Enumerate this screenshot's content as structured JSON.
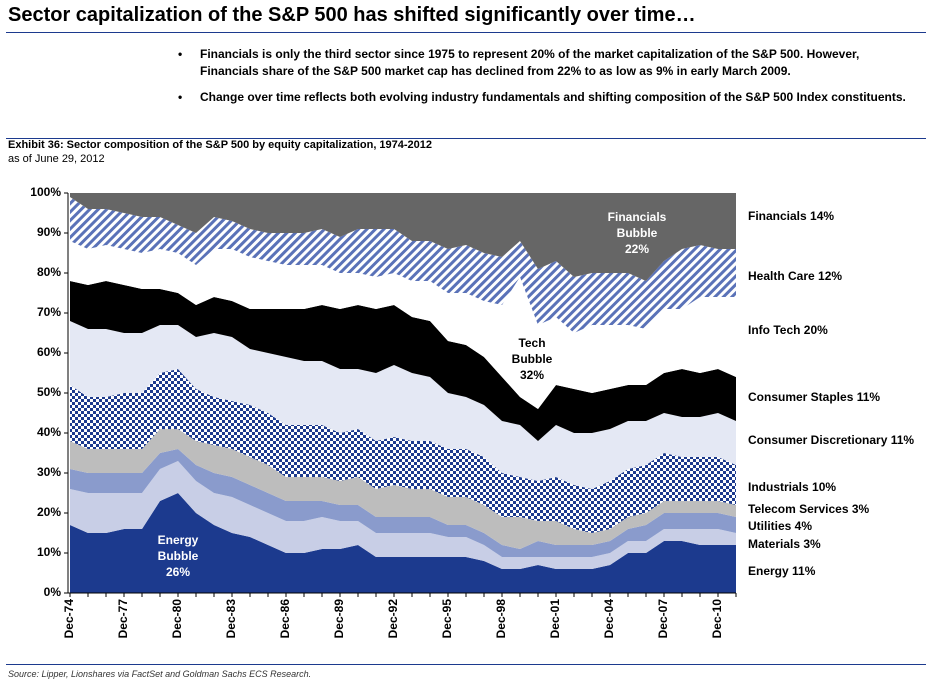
{
  "header": {
    "title": "Sector capitalization of the S&P 500 has shifted significantly over time…"
  },
  "bullets": [
    "Financials is only the third sector since 1975 to represent 20% of the market capitalization of the S&P 500. However, Financials share of the S&P 500 market cap has declined from 22% to as low as 9% in early March 2009.",
    "Change over time reflects both evolving industry fundamentals and shifting composition of the S&P 500 Index constituents."
  ],
  "chart_data": {
    "type": "stacked-area",
    "title": "Exhibit 36: Sector composition of the S&P 500 by equity capitalization, 1974-2012",
    "subtitle": "as of June 29, 2012",
    "categories": [
      "Dec-74",
      null,
      null,
      "Dec-77",
      null,
      null,
      "Dec-80",
      null,
      null,
      "Dec-83",
      null,
      null,
      "Dec-86",
      null,
      null,
      "Dec-89",
      null,
      null,
      "Dec-92",
      null,
      null,
      "Dec-95",
      null,
      null,
      "Dec-98",
      null,
      null,
      "Dec-01",
      null,
      null,
      "Dec-04",
      null,
      null,
      "Dec-07",
      null,
      null,
      "Dec-10",
      null
    ],
    "series": [
      {
        "name": "Energy 11%",
        "color": "#1c3a8e",
        "values": [
          17,
          15,
          15,
          16,
          16,
          23,
          25,
          20,
          17,
          15,
          14,
          12,
          10,
          10,
          11,
          11,
          12,
          9,
          9,
          9,
          9,
          9,
          9,
          8,
          6,
          6,
          7,
          6,
          6,
          6,
          7,
          10,
          10,
          13,
          13,
          12,
          12,
          12
        ]
      },
      {
        "name": "Materials 3%",
        "color": "#c8cee6",
        "values": [
          9,
          10,
          10,
          9,
          9,
          8,
          8,
          8,
          8,
          9,
          8,
          8,
          8,
          8,
          8,
          7,
          6,
          6,
          6,
          6,
          6,
          5,
          5,
          4,
          3,
          3,
          2,
          3,
          3,
          3,
          3,
          3,
          3,
          3,
          3,
          4,
          4,
          3
        ]
      },
      {
        "name": "Utilities 4%",
        "color": "#8a9bcc",
        "values": [
          5,
          5,
          5,
          5,
          5,
          4,
          3,
          4,
          5,
          5,
          5,
          5,
          5,
          5,
          4,
          4,
          4,
          4,
          4,
          4,
          4,
          3,
          3,
          3,
          3,
          2,
          4,
          3,
          3,
          3,
          3,
          3,
          4,
          4,
          4,
          4,
          4,
          4
        ]
      },
      {
        "name": "Telecom Services 3%",
        "color": "#bdbdbd",
        "values": [
          7,
          6,
          6,
          6,
          6,
          6,
          5,
          6,
          7,
          7,
          7,
          7,
          6,
          6,
          6,
          6,
          7,
          7,
          8,
          7,
          7,
          7,
          7,
          7,
          7,
          8,
          5,
          6,
          4,
          3,
          3,
          3,
          3,
          3,
          3,
          3,
          3,
          3
        ]
      },
      {
        "name": "Industrials 10%",
        "color": "#1c3a8e",
        "pattern": "checks",
        "values": [
          14,
          13,
          13,
          14,
          14,
          14,
          15,
          13,
          12,
          12,
          13,
          13,
          13,
          13,
          13,
          12,
          12,
          12,
          12,
          12,
          12,
          12,
          12,
          12,
          11,
          10,
          10,
          11,
          11,
          11,
          12,
          12,
          12,
          12,
          11,
          11,
          11,
          10
        ]
      },
      {
        "name": "Consumer Discretionary 11%",
        "color": "#e4e8f4",
        "values": [
          16,
          17,
          17,
          15,
          15,
          12,
          11,
          13,
          16,
          16,
          14,
          15,
          17,
          16,
          16,
          16,
          15,
          17,
          18,
          17,
          16,
          14,
          13,
          13,
          13,
          13,
          10,
          13,
          13,
          14,
          13,
          12,
          11,
          10,
          10,
          10,
          11,
          11
        ]
      },
      {
        "name": "Consumer Staples 11%",
        "color": "#000000",
        "values": [
          10,
          11,
          12,
          12,
          11,
          9,
          8,
          8,
          9,
          9,
          10,
          11,
          12,
          13,
          14,
          15,
          16,
          16,
          15,
          14,
          14,
          13,
          13,
          12,
          11,
          7,
          8,
          10,
          11,
          10,
          10,
          9,
          9,
          10,
          12,
          11,
          11,
          11
        ]
      },
      {
        "name": "Info Tech 20%",
        "color": "#ffffff",
        "values": [
          10,
          9,
          9,
          9,
          9,
          10,
          10,
          10,
          12,
          13,
          13,
          12,
          11,
          11,
          10,
          9,
          8,
          8,
          8,
          9,
          10,
          12,
          13,
          14,
          18,
          30,
          21,
          17,
          14,
          17,
          16,
          15,
          14,
          16,
          15,
          19,
          18,
          20
        ]
      },
      {
        "name": "Health Care 12%",
        "color": "#5a72b8",
        "pattern": "stripes",
        "values": [
          11,
          10,
          9,
          9,
          9,
          8,
          7,
          8,
          8,
          7,
          7,
          7,
          8,
          8,
          9,
          9,
          11,
          12,
          11,
          10,
          10,
          11,
          12,
          12,
          12,
          9,
          14,
          14,
          14,
          13,
          13,
          13,
          12,
          12,
          15,
          13,
          12,
          12
        ]
      },
      {
        "name": "Financials 14%",
        "color": "#666666",
        "values": [
          1,
          4,
          4,
          5,
          6,
          6,
          8,
          10,
          6,
          7,
          9,
          10,
          10,
          10,
          9,
          11,
          9,
          9,
          9,
          12,
          12,
          14,
          13,
          15,
          16,
          12,
          19,
          17,
          21,
          20,
          20,
          20,
          22,
          17,
          14,
          13,
          14,
          14
        ]
      }
    ],
    "ylim": [
      0,
      100
    ],
    "yticks": [
      {
        "value": 0,
        "label": "0%"
      },
      {
        "value": 10,
        "label": "10%"
      },
      {
        "value": 20,
        "label": "20%"
      },
      {
        "value": 30,
        "label": "30%"
      },
      {
        "value": 40,
        "label": "40%"
      },
      {
        "value": 50,
        "label": "50%"
      },
      {
        "value": 60,
        "label": "60%"
      },
      {
        "value": 70,
        "label": "70%"
      },
      {
        "value": 80,
        "label": "80%"
      },
      {
        "value": 90,
        "label": "90%"
      },
      {
        "value": 100,
        "label": "100%"
      }
    ],
    "annotations": [
      [
        "Energy",
        "Bubble",
        "26%"
      ],
      [
        "Tech",
        "Bubble",
        "32%"
      ],
      [
        "Financials",
        "Bubble",
        "22%"
      ]
    ]
  },
  "source": "Source: Lipper, Lionshares via FactSet and Goldman Sachs ECS Research."
}
